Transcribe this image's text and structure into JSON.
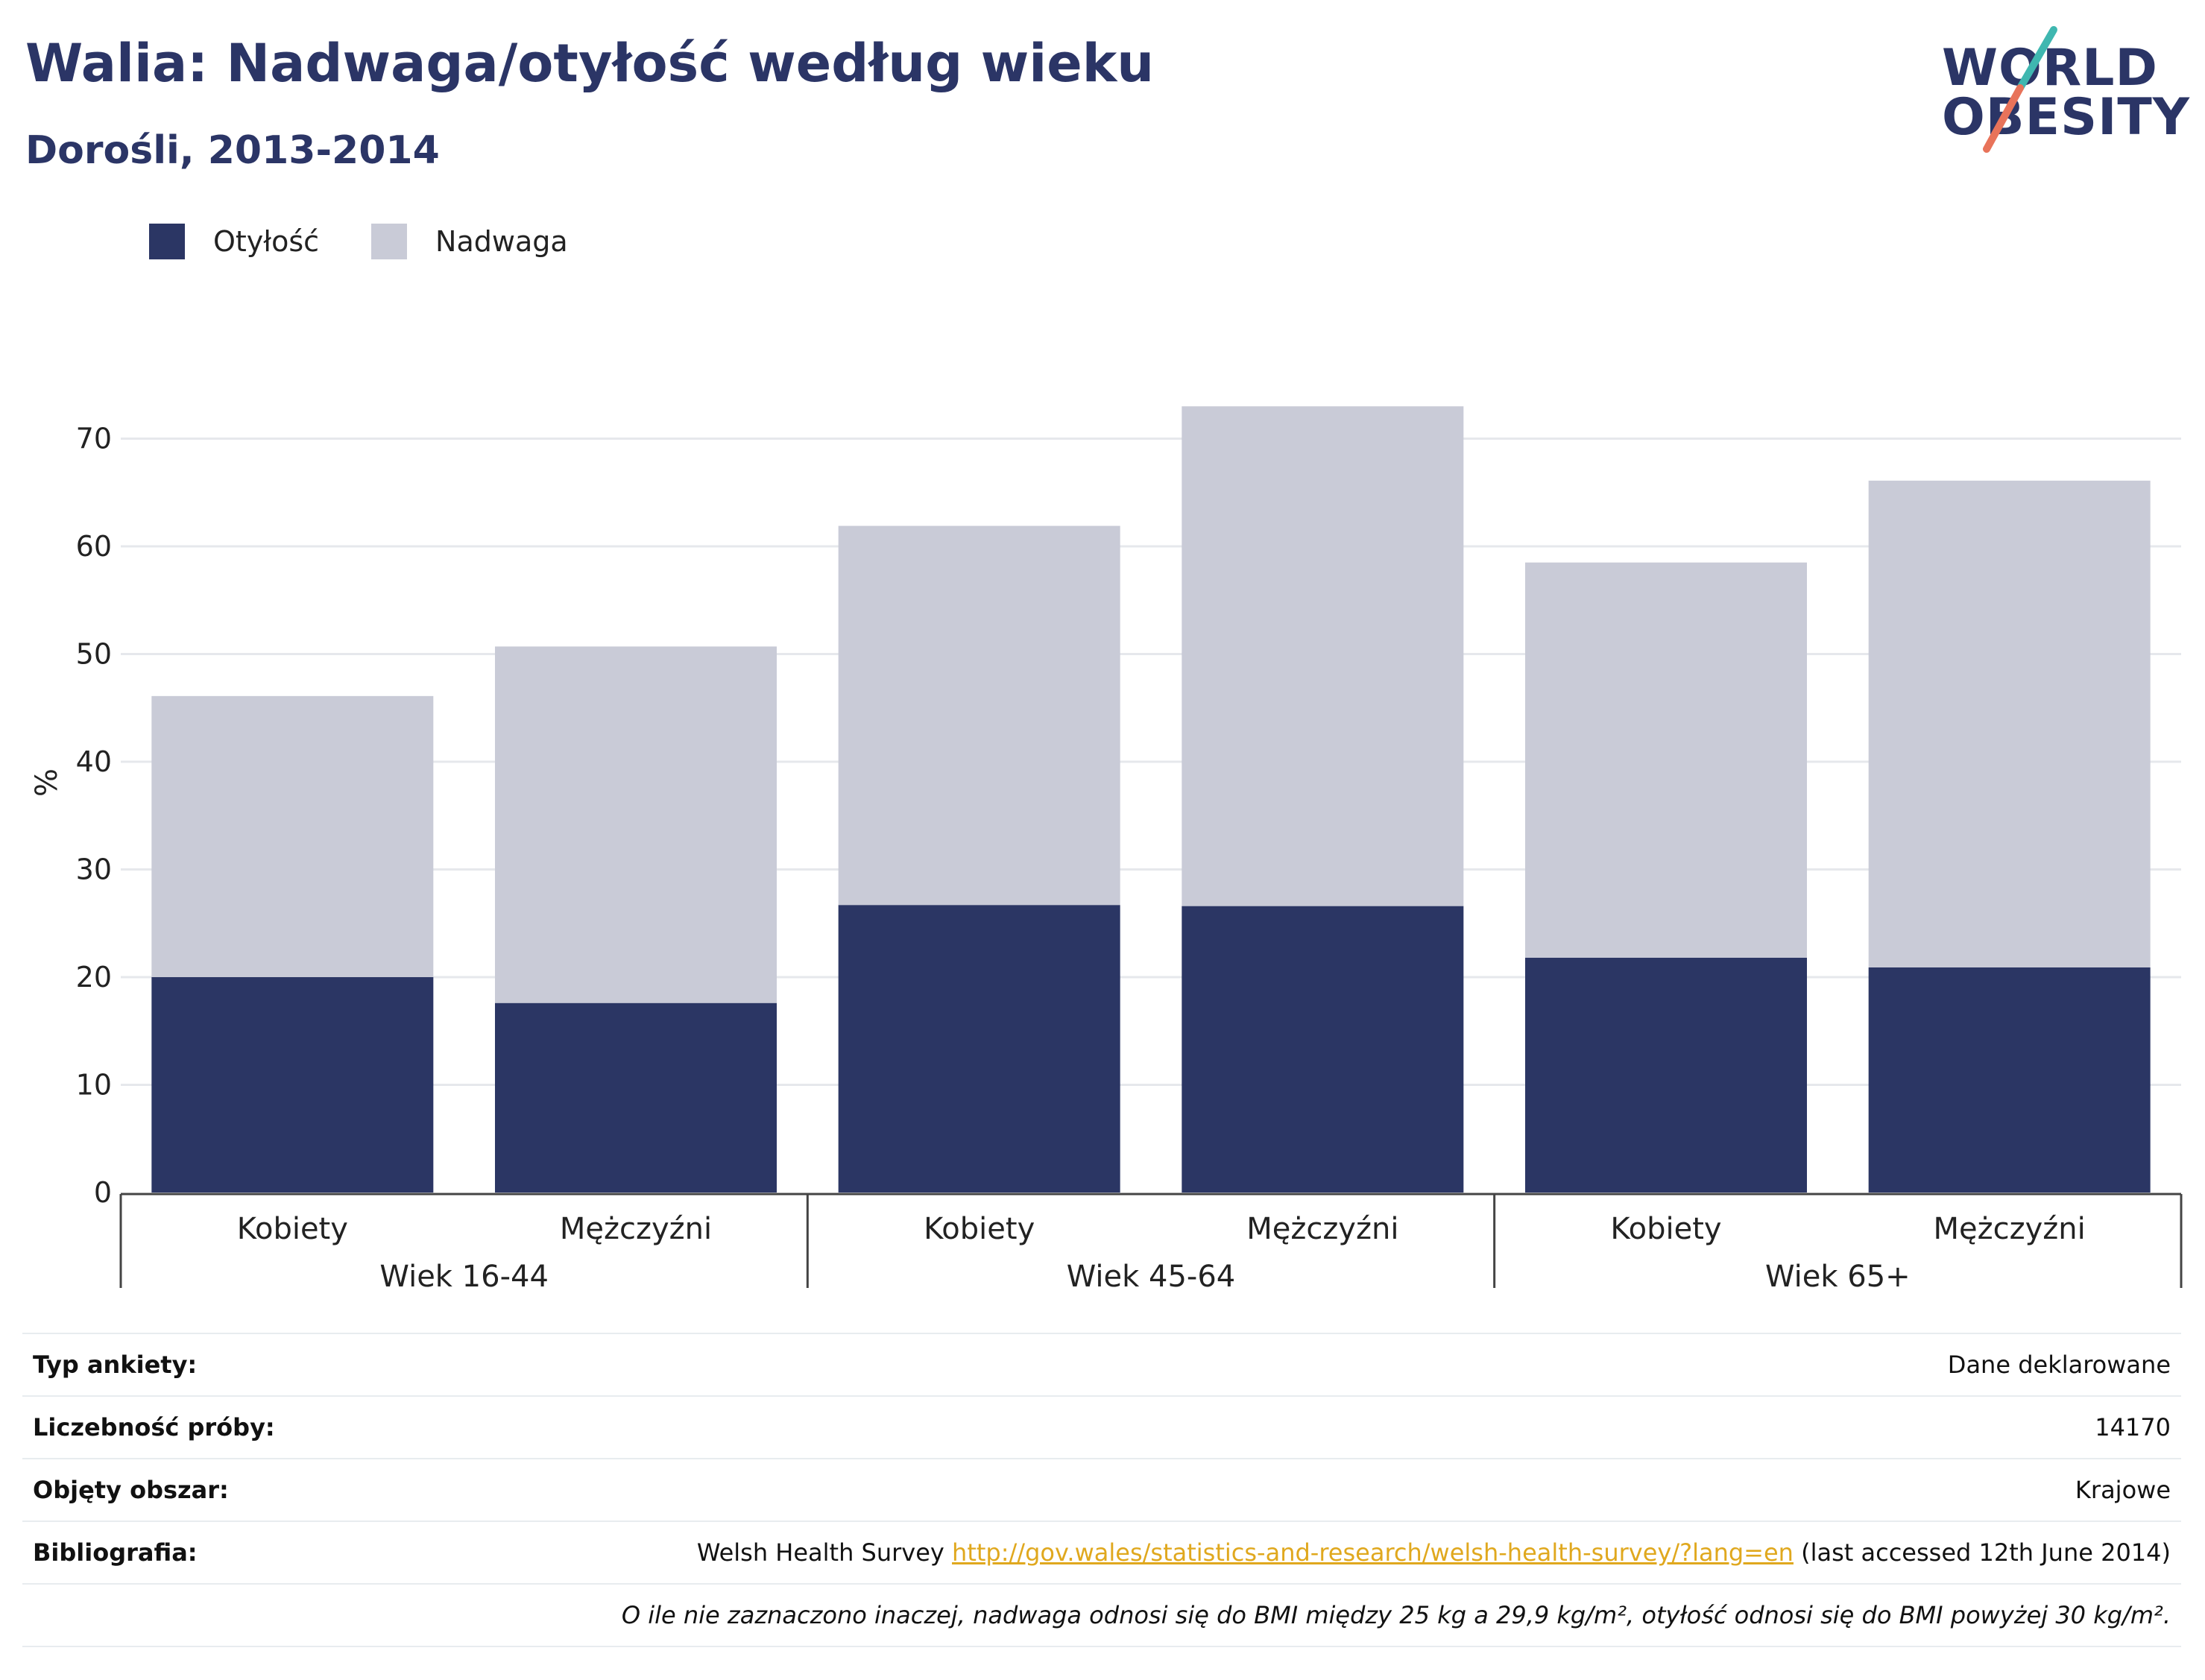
{
  "title": "Walia: Nadwaga/otyłość według wieku",
  "subtitle": "Dorośli, 2013-2014",
  "logo": {
    "line1": "WORLD",
    "line2": "OBESITY",
    "colors": {
      "text": "#2b3566",
      "teal": "#3fb7b0",
      "coral": "#e8735a"
    }
  },
  "legend": [
    {
      "label": "Otyłość",
      "color": "#2b3664"
    },
    {
      "label": "Nadwaga",
      "color": "#c9cbd7"
    }
  ],
  "chart_data": {
    "type": "bar",
    "stacked": true,
    "ylabel": "%",
    "ylim": [
      0,
      75
    ],
    "yticks": [
      0,
      10,
      20,
      30,
      40,
      50,
      60,
      70
    ],
    "grid": true,
    "groups": [
      "Wiek 16-44",
      "Wiek 45-64",
      "Wiek 65+"
    ],
    "categories": [
      "Kobiety",
      "Mężczyźni",
      "Kobiety",
      "Mężczyźni",
      "Kobiety",
      "Mężczyźni"
    ],
    "series": [
      {
        "name": "Otyłość",
        "color": "#2b3664",
        "values": [
          20,
          17.6,
          26.7,
          26.6,
          21.8,
          20.9
        ]
      },
      {
        "name": "Nadwaga",
        "color": "#c9cbd7",
        "values": [
          26.1,
          33.1,
          35.2,
          46.4,
          36.7,
          45.2
        ]
      }
    ]
  },
  "info": {
    "rows": [
      {
        "label": "Typ ankiety:",
        "value": "Dane deklarowane"
      },
      {
        "label": "Liczebność próby:",
        "value": "14170"
      },
      {
        "label": "Objęty obszar:",
        "value": "Krajowe"
      }
    ],
    "bibliography": {
      "label": "Bibliografia:",
      "prefix": "Welsh Health Survey ",
      "link": "http://gov.wales/statistics-and-research/welsh-health-survey/?lang=en",
      "suffix": " (last accessed 12th June 2014)"
    },
    "note": "O ile nie zaznaczono inaczej, nadwaga odnosi się do BMI między 25 kg a 29,9 kg/m², otyłość odnosi się do BMI powyżej 30 kg/m²."
  }
}
